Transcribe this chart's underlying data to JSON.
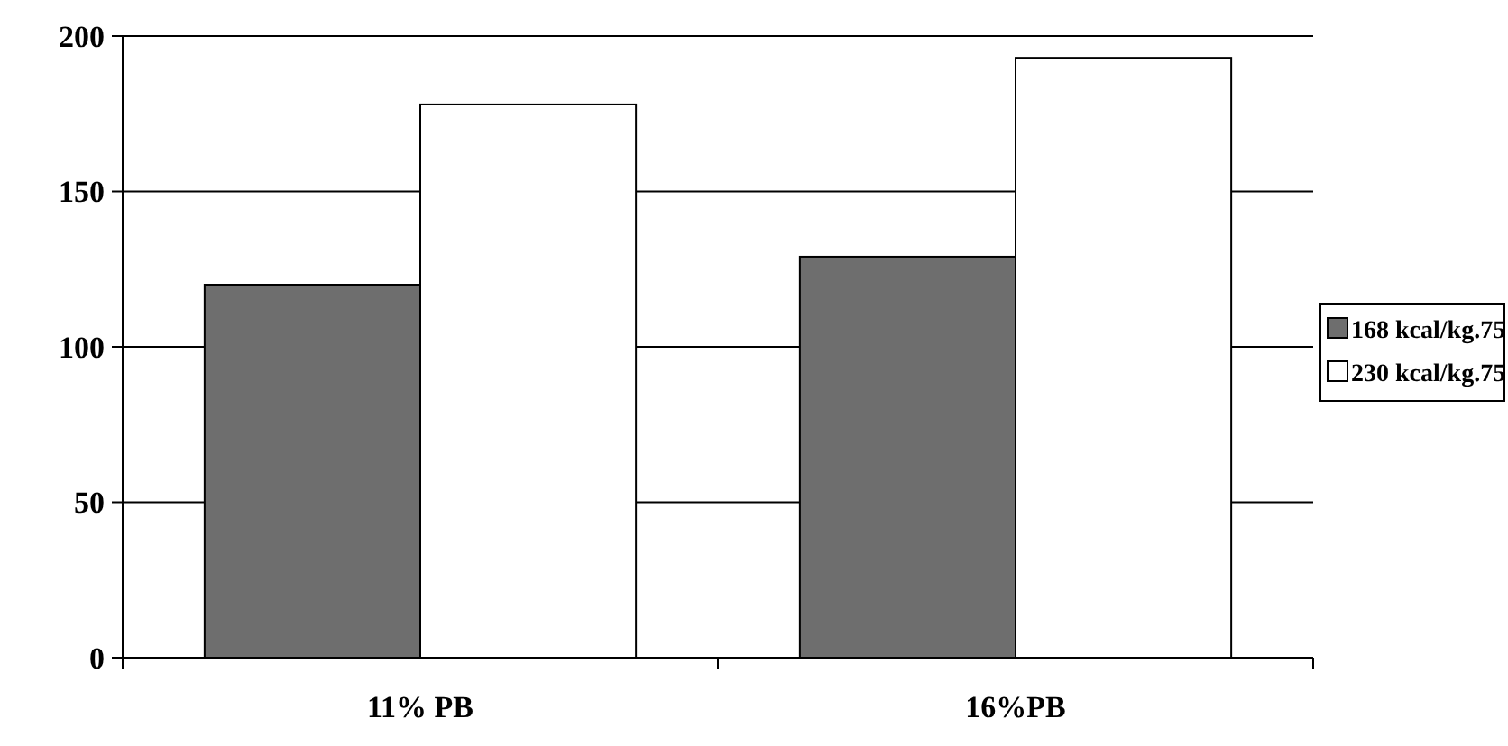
{
  "chart_data": {
    "type": "bar",
    "categories": [
      "11% PB",
      "16%PB"
    ],
    "series": [
      {
        "name": "168 kcal/kg.75",
        "color": "#6e6e6e",
        "values": [
          120,
          129
        ]
      },
      {
        "name": "230 kcal/kg.75",
        "color": "#ffffff",
        "values": [
          178,
          193
        ]
      }
    ],
    "ylim": [
      0,
      200
    ],
    "yticks": [
      0,
      50,
      100,
      150,
      200
    ],
    "grid": "y",
    "legend": "right"
  }
}
